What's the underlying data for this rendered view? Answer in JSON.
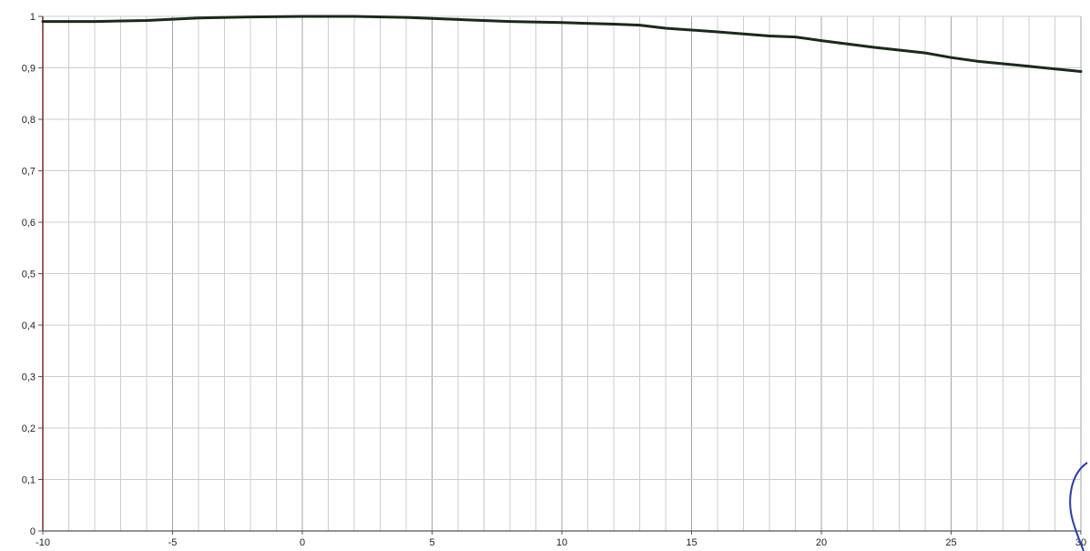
{
  "chart_data": {
    "type": "line",
    "title": "",
    "xlabel": "",
    "ylabel": "",
    "xlim": [
      -10,
      30
    ],
    "ylim": [
      0,
      1
    ],
    "grid": true,
    "x_minor_step": 1,
    "x_ticks": [
      -10,
      -5,
      0,
      5,
      10,
      15,
      20,
      25,
      30
    ],
    "x_tick_labels": [
      "-10",
      "-5",
      "0",
      "5",
      "10",
      "15",
      "20",
      "25",
      "30"
    ],
    "y_ticks": [
      0,
      0.1,
      0.2,
      0.3,
      0.4,
      0.5,
      0.6,
      0.7,
      0.8,
      0.9,
      1
    ],
    "y_tick_labels": [
      "0",
      "0,1",
      "0,2",
      "0,3",
      "0,4",
      "0,5",
      "0,6",
      "0,7",
      "0,8",
      "0,9",
      "1"
    ],
    "series": [
      {
        "color": "#1a2a1a",
        "x": [
          -10,
          -8,
          -6,
          -4,
          -2,
          0,
          2,
          4,
          6,
          8,
          10,
          12,
          13,
          14,
          16,
          18,
          19,
          20,
          22,
          24,
          25,
          26,
          28,
          30
        ],
        "y": [
          0.99,
          0.99,
          0.992,
          0.997,
          0.999,
          1.0,
          1.0,
          0.998,
          0.994,
          0.99,
          0.988,
          0.985,
          0.983,
          0.977,
          0.97,
          0.962,
          0.96,
          0.953,
          0.94,
          0.929,
          0.92,
          0.913,
          0.903,
          0.893
        ]
      }
    ]
  }
}
